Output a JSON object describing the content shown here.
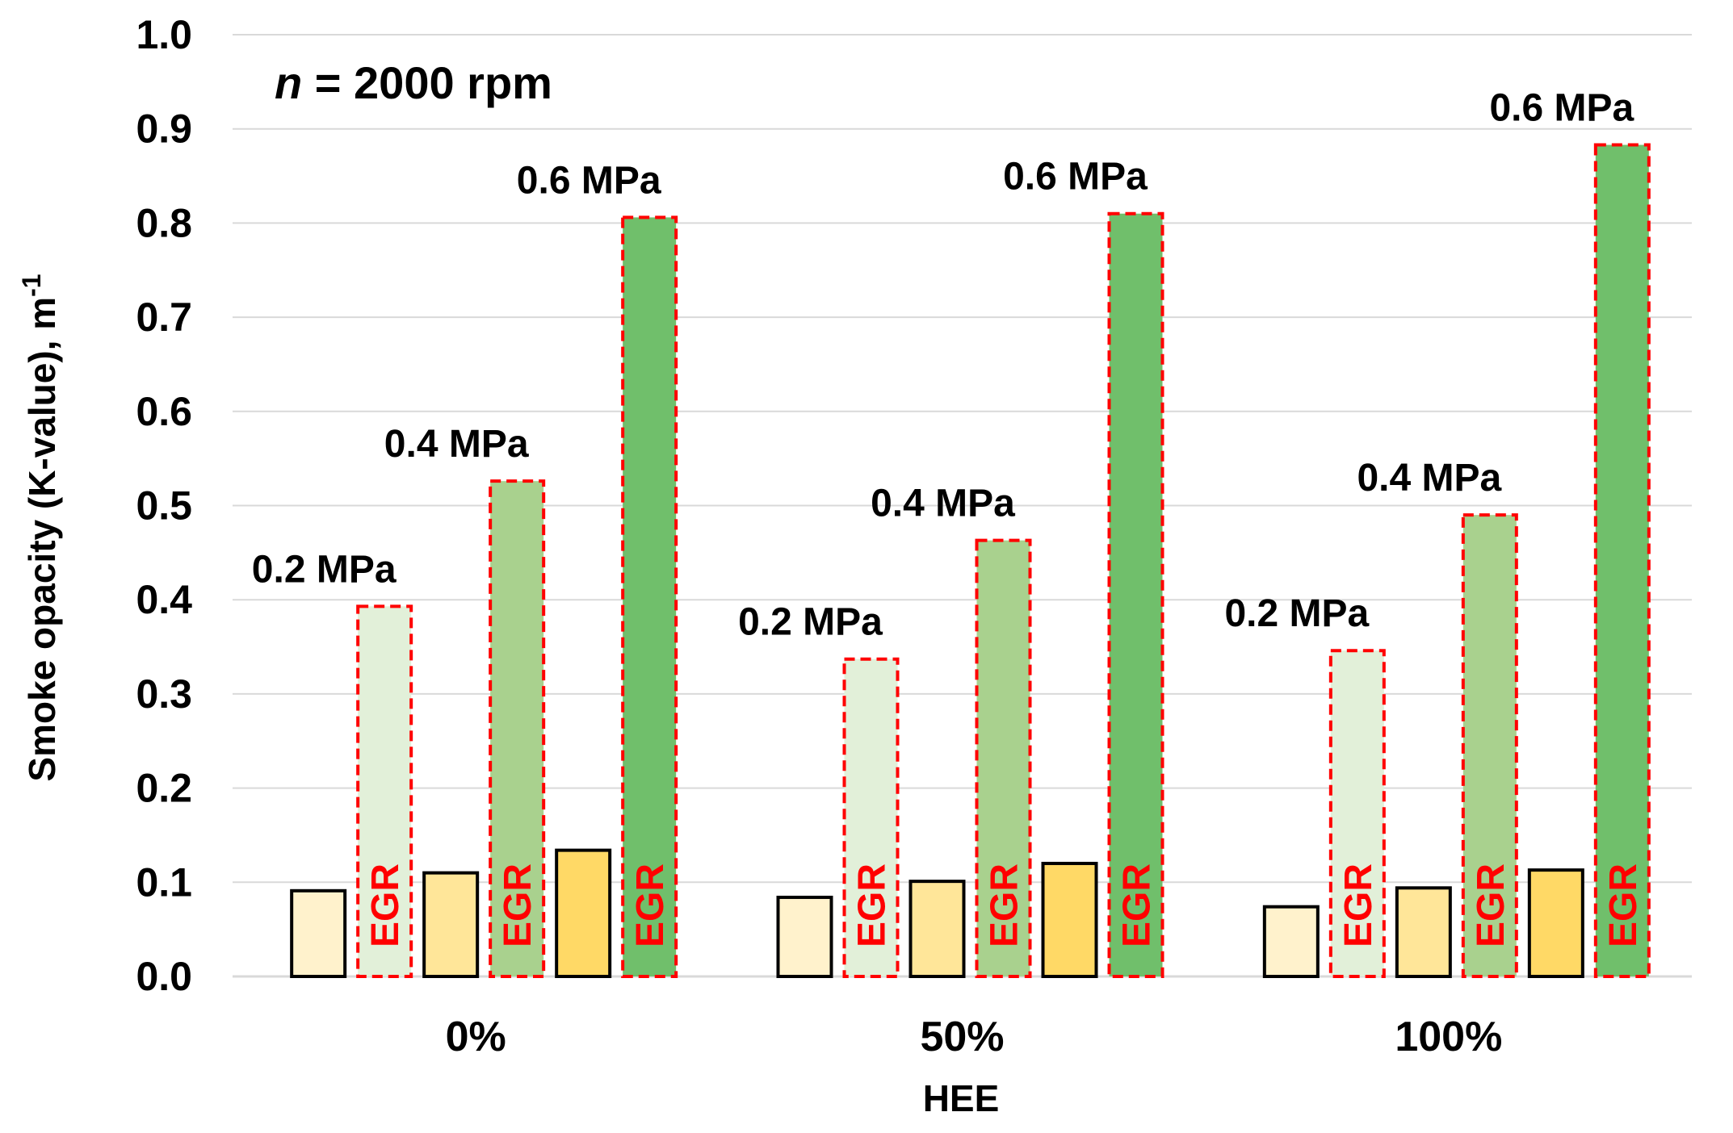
{
  "chart_data": {
    "type": "bar",
    "title": "",
    "annotation": {
      "prefix": "n",
      "text": " = 2000 rpm"
    },
    "xlabel": "HEE",
    "ylabel": {
      "text": "Smoke opacity (K-value), m",
      "sup": "-1"
    },
    "ylim": [
      0,
      1.0
    ],
    "yticks": [
      "0.0",
      "0.1",
      "0.2",
      "0.3",
      "0.4",
      "0.5",
      "0.6",
      "0.7",
      "0.8",
      "0.9",
      "1.0"
    ],
    "grid": true,
    "categories": [
      "0%",
      "50%",
      "100%"
    ],
    "series": [
      {
        "name": "0.2 MPa",
        "egr": false,
        "color": "#FFF2CC",
        "values": [
          0.091,
          0.084,
          0.074
        ]
      },
      {
        "name": "0.2 MPa EGR",
        "egr": true,
        "color": "#E2F0D9",
        "values": [
          0.393,
          0.337,
          0.346
        ]
      },
      {
        "name": "0.4 MPa",
        "egr": false,
        "color": "#FFE699",
        "values": [
          0.11,
          0.101,
          0.094
        ]
      },
      {
        "name": "0.4 MPa EGR",
        "egr": true,
        "color": "#A9D18E",
        "values": [
          0.526,
          0.463,
          0.49
        ]
      },
      {
        "name": "0.6 MPa",
        "egr": false,
        "color": "#FFD966",
        "values": [
          0.134,
          0.12,
          0.113
        ]
      },
      {
        "name": "0.6 MPa EGR",
        "egr": true,
        "color": "#70BF6B",
        "values": [
          0.806,
          0.81,
          0.883
        ]
      }
    ],
    "bar_label": "EGR",
    "data_labels": [
      {
        "series": 1,
        "category": 0,
        "text": "0.2 MPa"
      },
      {
        "series": 3,
        "category": 0,
        "text": "0.4 MPa"
      },
      {
        "series": 5,
        "category": 0,
        "text": "0.6 MPa"
      },
      {
        "series": 1,
        "category": 1,
        "text": "0.2 MPa"
      },
      {
        "series": 3,
        "category": 1,
        "text": "0.4 MPa"
      },
      {
        "series": 5,
        "category": 1,
        "text": "0.6 MPa"
      },
      {
        "series": 1,
        "category": 2,
        "text": "0.2 MPa"
      },
      {
        "series": 3,
        "category": 2,
        "text": "0.4 MPa"
      },
      {
        "series": 5,
        "category": 2,
        "text": "0.6 MPa"
      }
    ],
    "colors": {
      "egr_border": "#FF0000",
      "egr_text": "#FF0000",
      "bar_border": "#000000",
      "grid": "#D9D9D9"
    }
  }
}
